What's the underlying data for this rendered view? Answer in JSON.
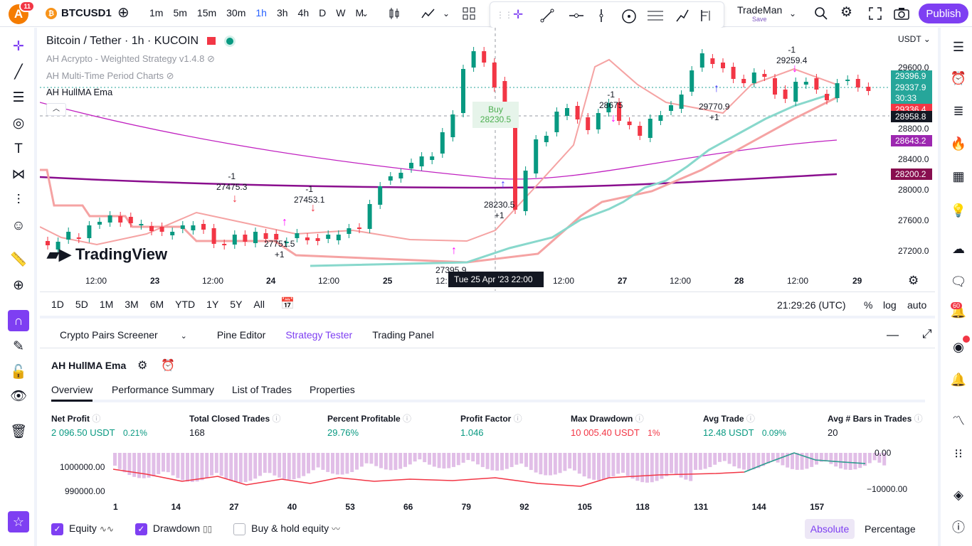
{
  "topbar": {
    "avatar_letter": "A",
    "notif_count": "11",
    "symbol": "BTCUSD1",
    "intervals": [
      "1m",
      "5m",
      "15m",
      "30m",
      "1h",
      "3h",
      "4h",
      "D",
      "W",
      "M"
    ],
    "active_interval": "1h",
    "layout_name": "TradeMan",
    "save_label": "Save",
    "publish_label": "Publish"
  },
  "chart": {
    "title": "Bitcoin / Tether · 1h · KUCOIN",
    "indicators": [
      "AH Acrypto - Weighted Strategy v1.4.8",
      "AH Multi-Time Period Charts",
      "AH HullMA Ema"
    ],
    "currency": "USDT",
    "watermark": "TradingView",
    "price_labels": [
      "29600.0",
      "29200.0",
      "28800.0",
      "28400.0",
      "28000.0",
      "27600.0",
      "27200.0"
    ],
    "price_tags": [
      {
        "value": "29396.9",
        "color": "#26a69a"
      },
      {
        "value": "29337.9",
        "color": "#26a69a"
      },
      {
        "value": "30:33",
        "color": "#26a69a"
      },
      {
        "value": "29336.4",
        "color": "#f23645"
      },
      {
        "value": "28958.8",
        "color": "#131722"
      },
      {
        "value": "28643.2",
        "color": "#9c27b0"
      },
      {
        "value": "28200.2",
        "color": "#880e4f"
      }
    ],
    "time_labels": [
      "12:00",
      "23",
      "12:00",
      "24",
      "12:00",
      "25",
      "12:",
      "12:00",
      "27",
      "12:00",
      "28",
      "12:00",
      "29"
    ],
    "crosshair_time": "Tue 25 Apr '23   22:00",
    "trade_labels": [
      {
        "top": "-1",
        "bottom": "27475.3"
      },
      {
        "top": "-1",
        "bottom": "27453.1"
      },
      {
        "top": "27751.5",
        "bottom": "+1"
      },
      {
        "top": "28230.5",
        "bottom": "+1"
      },
      {
        "top": "-1",
        "bottom": "28675"
      },
      {
        "top": "29770.9",
        "bottom": "+1"
      },
      {
        "top": "-1",
        "bottom": "29259.4"
      },
      {
        "top": "27395.9",
        "bottom": ""
      }
    ],
    "buy_box": {
      "label": "Buy",
      "price": "28230.5"
    }
  },
  "rangebar": {
    "ranges": [
      "1D",
      "5D",
      "1M",
      "3M",
      "6M",
      "YTD",
      "1Y",
      "5Y",
      "All"
    ],
    "clock": "21:29:26 (UTC)",
    "pct": "%",
    "log": "log",
    "auto": "auto"
  },
  "panel": {
    "tabs": [
      "Crypto Pairs Screener",
      "Pine Editor",
      "Strategy Tester",
      "Trading Panel"
    ],
    "active_tab": "Strategy Tester",
    "strategy_name": "AH HullMA Ema",
    "subtabs": [
      "Overview",
      "Performance Summary",
      "List of Trades",
      "Properties"
    ],
    "stats": [
      {
        "label": "Net Profit",
        "value": "2 096.50 USDT",
        "extra": "0.21%",
        "color": "green"
      },
      {
        "label": "Total Closed Trades",
        "value": "168",
        "extra": "",
        "color": "plain"
      },
      {
        "label": "Percent Profitable",
        "value": "29.76%",
        "extra": "",
        "color": "green"
      },
      {
        "label": "Profit Factor",
        "value": "1.046",
        "extra": "",
        "color": "green"
      },
      {
        "label": "Max Drawdown",
        "value": "10 005.40 USDT",
        "extra": "1%",
        "color": "red"
      },
      {
        "label": "Avg Trade",
        "value": "12.48 USDT",
        "extra": "0.09%",
        "color": "green"
      },
      {
        "label": "Avg # Bars in Trades",
        "value": "20",
        "extra": "",
        "color": "plain"
      }
    ],
    "equity_axis_left": [
      "1000000.00",
      "990000.00"
    ],
    "equity_axis_right": [
      "0.00",
      "−10000.00"
    ],
    "equity_x_labels": [
      "1",
      "14",
      "27",
      "40",
      "53",
      "66",
      "79",
      "92",
      "105",
      "118",
      "131",
      "144",
      "157"
    ],
    "legend": {
      "equity": "Equity",
      "drawdown": "Drawdown",
      "buyhold": "Buy & hold equity"
    },
    "mode": {
      "absolute": "Absolute",
      "percentage": "Percentage"
    },
    "right_badge": "60"
  }
}
